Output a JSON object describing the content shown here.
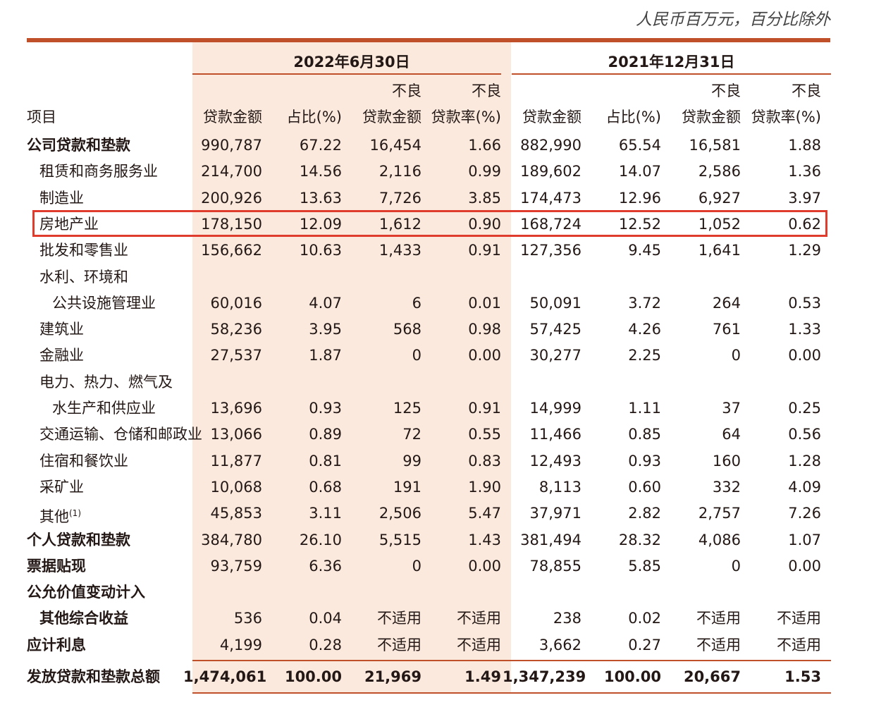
{
  "unit_note": "人民币百万元，百分比除外",
  "groups": [
    "2022年6月30日",
    "2021年12月31日"
  ],
  "headers": {
    "item": "项目",
    "amount": "贷款金额",
    "share": "占比(%)",
    "npl_top": "不良",
    "npl_amount": "贷款金额",
    "npl_rate": "贷款率(%)"
  },
  "rows": [
    {
      "label": "公司贷款和垫款",
      "indent": 0,
      "bold": true,
      "values": [
        "990,787",
        "67.22",
        "16,454",
        "1.66",
        "882,990",
        "65.54",
        "16,581",
        "1.88"
      ]
    },
    {
      "label": "租赁和商务服务业",
      "indent": 1,
      "values": [
        "214,700",
        "14.56",
        "2,116",
        "0.99",
        "189,602",
        "14.07",
        "2,586",
        "1.36"
      ]
    },
    {
      "label": "制造业",
      "indent": 1,
      "values": [
        "200,926",
        "13.63",
        "7,726",
        "3.85",
        "174,473",
        "12.96",
        "6,927",
        "3.97"
      ]
    },
    {
      "label": "房地产业",
      "indent": 1,
      "highlight": true,
      "values": [
        "178,150",
        "12.09",
        "1,612",
        "0.90",
        "168,724",
        "12.52",
        "1,052",
        "0.62"
      ]
    },
    {
      "label": "批发和零售业",
      "indent": 1,
      "values": [
        "156,662",
        "10.63",
        "1,433",
        "0.91",
        "127,356",
        "9.45",
        "1,641",
        "1.29"
      ]
    },
    {
      "label": "水利、环境和",
      "indent": 1,
      "values": []
    },
    {
      "label": "公共设施管理业",
      "indent": 2,
      "values": [
        "60,016",
        "4.07",
        "6",
        "0.01",
        "50,091",
        "3.72",
        "264",
        "0.53"
      ]
    },
    {
      "label": "建筑业",
      "indent": 1,
      "values": [
        "58,236",
        "3.95",
        "568",
        "0.98",
        "57,425",
        "4.26",
        "761",
        "1.33"
      ]
    },
    {
      "label": "金融业",
      "indent": 1,
      "values": [
        "27,537",
        "1.87",
        "0",
        "0.00",
        "30,277",
        "2.25",
        "0",
        "0.00"
      ]
    },
    {
      "label": "电力、热力、燃气及",
      "indent": 1,
      "values": []
    },
    {
      "label": "水生产和供应业",
      "indent": 2,
      "values": [
        "13,696",
        "0.93",
        "125",
        "0.91",
        "14,999",
        "1.11",
        "37",
        "0.25"
      ]
    },
    {
      "label": "交通运输、仓储和邮政业",
      "indent": 1,
      "values": [
        "13,066",
        "0.89",
        "72",
        "0.55",
        "11,466",
        "0.85",
        "64",
        "0.56"
      ]
    },
    {
      "label": "住宿和餐饮业",
      "indent": 1,
      "values": [
        "11,877",
        "0.81",
        "99",
        "0.83",
        "12,493",
        "0.93",
        "160",
        "1.28"
      ]
    },
    {
      "label": "采矿业",
      "indent": 1,
      "values": [
        "10,068",
        "0.68",
        "191",
        "1.90",
        "8,113",
        "0.60",
        "332",
        "4.09"
      ]
    },
    {
      "label": "其他",
      "note": "(1)",
      "indent": 1,
      "values": [
        "45,853",
        "3.11",
        "2,506",
        "5.47",
        "37,971",
        "2.82",
        "2,757",
        "7.26"
      ]
    },
    {
      "label": "个人贷款和垫款",
      "indent": 0,
      "bold": true,
      "values": [
        "384,780",
        "26.10",
        "5,515",
        "1.43",
        "381,494",
        "28.32",
        "4,086",
        "1.07"
      ]
    },
    {
      "label": "票据贴现",
      "indent": 0,
      "bold": true,
      "values": [
        "93,759",
        "6.36",
        "0",
        "0.00",
        "78,855",
        "5.85",
        "0",
        "0.00"
      ]
    },
    {
      "label": "公允价值变动计入",
      "indent": 0,
      "bold": true,
      "values": []
    },
    {
      "label": "其他综合收益",
      "indent": 1,
      "bold": true,
      "values": [
        "536",
        "0.04",
        "不适用",
        "不适用",
        "238",
        "0.02",
        "不适用",
        "不适用"
      ]
    },
    {
      "label": "应计利息",
      "indent": 0,
      "bold": true,
      "values": [
        "4,199",
        "0.28",
        "不适用",
        "不适用",
        "3,662",
        "0.27",
        "不适用",
        "不适用"
      ]
    }
  ],
  "total": {
    "label": "发放贷款和垫款总额",
    "values": [
      "1,474,061",
      "100.00",
      "21,969",
      "1.49",
      "1,347,239",
      "100.00",
      "20,667",
      "1.53"
    ]
  },
  "colors": {
    "accent": "#c0502a",
    "shade": "#fbe9dd",
    "highlight_border": "#e03c2e"
  }
}
